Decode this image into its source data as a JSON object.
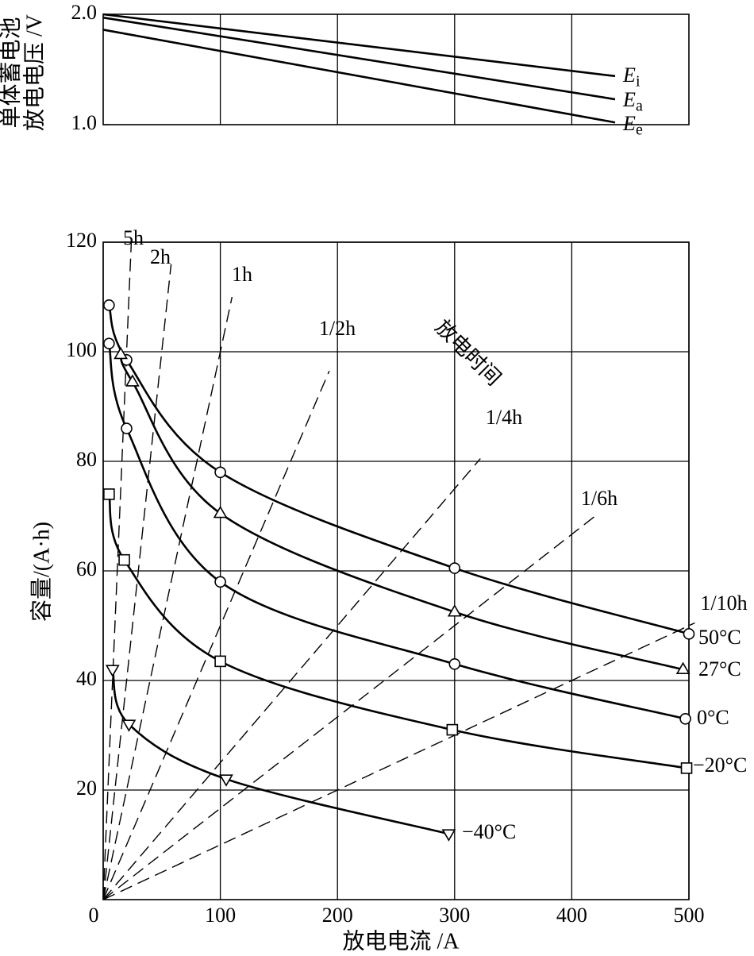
{
  "chart_data": [
    {
      "type": "line",
      "ylabel": [
        "单体蓄电池",
        "放电电压 /V"
      ],
      "xlim": [
        0,
        500
      ],
      "ylim": [
        1,
        2
      ],
      "yticks": [
        {
          "value": 1,
          "label": "1.0"
        },
        {
          "value": 2,
          "label": "2.0"
        }
      ],
      "xgrid": [
        100,
        200,
        300,
        400
      ],
      "series": [
        {
          "name": "E",
          "subscript": "i",
          "color": "#000000",
          "x": [
            0,
            437
          ],
          "values": [
            2.0,
            1.44
          ]
        },
        {
          "name": "E",
          "subscript": "a",
          "color": "#000000",
          "x": [
            0,
            437
          ],
          "values": [
            1.97,
            1.23
          ]
        },
        {
          "name": "E",
          "subscript": "e",
          "color": "#000000",
          "x": [
            0,
            437
          ],
          "values": [
            1.86,
            1.02
          ]
        }
      ]
    },
    {
      "type": "line",
      "xlabel": "放电电流 /A",
      "ylabel": "容量/(A·h)",
      "xlim": [
        0,
        500
      ],
      "ylim": [
        0,
        120
      ],
      "xticks": [
        0,
        100,
        200,
        300,
        400,
        500
      ],
      "yticks": [
        20,
        40,
        60,
        80,
        100,
        120
      ],
      "grid": true,
      "series": [
        {
          "name": "50°C",
          "marker": "circle",
          "color": "#000000",
          "x": [
            5,
            20,
            100,
            300,
            500
          ],
          "values": [
            108.5,
            98.5,
            78,
            60.5,
            48.5
          ]
        },
        {
          "name": "27°C",
          "marker": "triangle-up",
          "color": "#000000",
          "x": [
            15,
            25,
            100,
            300,
            495
          ],
          "values": [
            99.5,
            94.5,
            70.5,
            52.5,
            42
          ]
        },
        {
          "name": "0°C",
          "marker": "circle",
          "color": "#000000",
          "x": [
            5,
            20,
            100,
            300,
            497
          ],
          "values": [
            101.5,
            86,
            58,
            43,
            33
          ]
        },
        {
          "name": "−20°C",
          "marker": "square",
          "color": "#000000",
          "x": [
            5,
            18,
            100,
            298,
            498
          ],
          "values": [
            74,
            62,
            43.5,
            31,
            24
          ]
        },
        {
          "name": "−40°C",
          "marker": "triangle-down",
          "color": "#000000",
          "x": [
            8,
            22,
            105,
            295
          ],
          "values": [
            42,
            32,
            22,
            12
          ]
        }
      ],
      "reference_lines": {
        "title": "放电时间",
        "lines": [
          {
            "label": "5h",
            "hours": 5
          },
          {
            "label": "2h",
            "hours": 2
          },
          {
            "label": "1h",
            "hours": 1
          },
          {
            "label": "1/2h",
            "hours": 0.5
          },
          {
            "label": "1/4h",
            "hours": 0.25
          },
          {
            "label": "1/6h",
            "hours": 0.1667
          },
          {
            "label": "1/10h",
            "hours": 0.1
          }
        ]
      }
    }
  ]
}
